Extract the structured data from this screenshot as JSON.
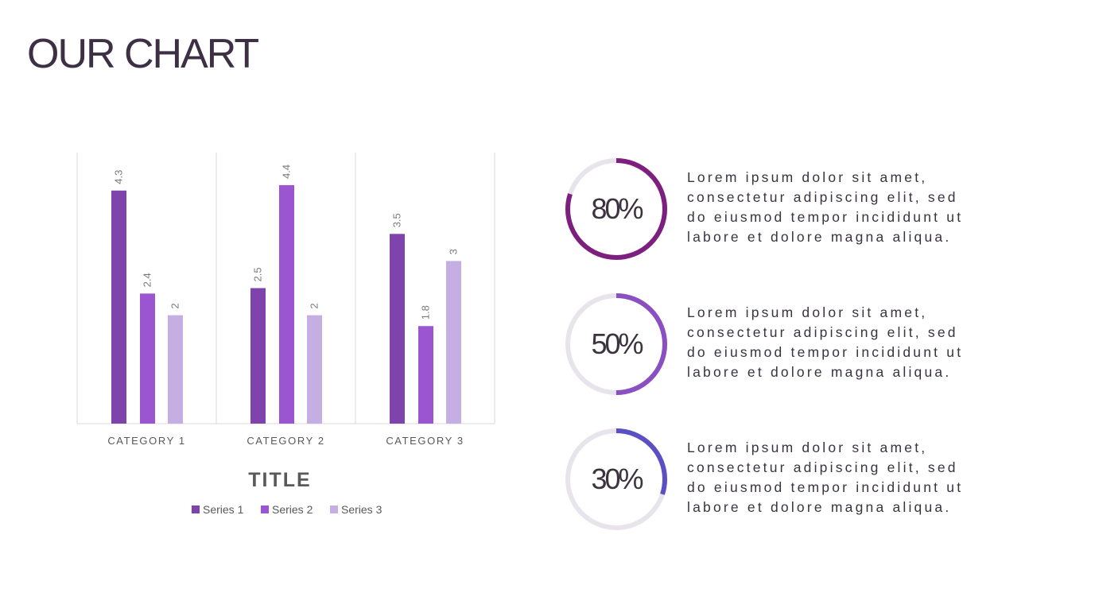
{
  "title": "OUR CHART",
  "chart_data": {
    "type": "bar",
    "title": "TITLE",
    "categories": [
      "CATEGORY 1",
      "CATEGORY 2",
      "CATEGORY 3"
    ],
    "series": [
      {
        "name": "Series 1",
        "values": [
          4.3,
          2.5,
          3.5
        ],
        "color": "#7e44ac"
      },
      {
        "name": "Series 2",
        "values": [
          2.4,
          4.4,
          1.8
        ],
        "color": "#9b55d0"
      },
      {
        "name": "Series 3",
        "values": [
          2,
          2,
          3
        ],
        "color": "#c5aee2"
      }
    ],
    "ylim": [
      0,
      5
    ],
    "data_labels": true,
    "grid": "vertical category separators",
    "legend": "bottom"
  },
  "stats": [
    {
      "value": 80,
      "label": "80%",
      "color": "#7d1f7e",
      "text": [
        "Lorem ipsum dolor sit amet,",
        "consectetur adipiscing elit, sed",
        "do eiusmod tempor incididunt ut",
        "labore et dolore magna aliqua."
      ]
    },
    {
      "value": 50,
      "label": "50%",
      "color": "#8a4fc0",
      "text": [
        "Lorem ipsum dolor sit amet,",
        "consectetur adipiscing elit, sed",
        "do eiusmod tempor incididunt ut",
        "labore et dolore magna aliqua."
      ]
    },
    {
      "value": 30,
      "label": "30%",
      "color": "#5b4fc4",
      "text": [
        "Lorem ipsum dolor sit amet,",
        "consectetur adipiscing elit, sed",
        "do eiusmod tempor incididunt ut",
        "labore et dolore magna aliqua."
      ]
    }
  ],
  "track_color": "#e8e4ec"
}
